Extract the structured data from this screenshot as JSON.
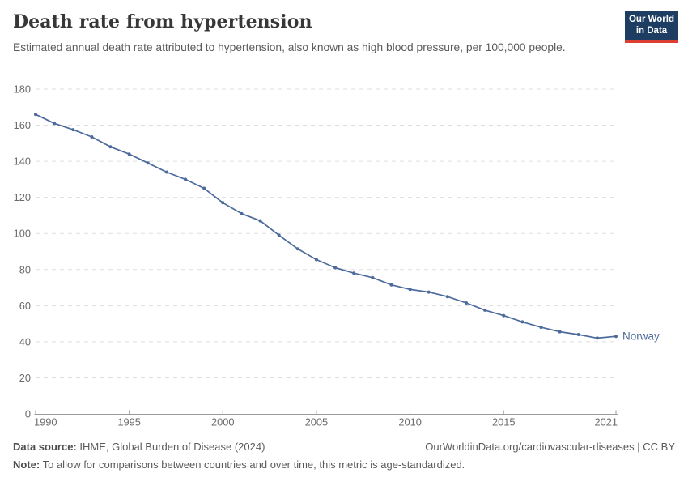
{
  "header": {
    "title": "Death rate from hypertension",
    "subtitle": "Estimated annual death rate attributed to hypertension, also known as high blood pressure, per 100,000 people.",
    "logo": {
      "line1": "Our World",
      "line2": "in Data",
      "bg_color": "#1d3d63",
      "accent_color": "#dc3e32"
    }
  },
  "chart_data": {
    "type": "line",
    "title": "Death rate from hypertension",
    "subtitle": "Estimated annual death rate attributed to hypertension, also known as high blood pressure, per 100,000 people.",
    "xlabel": "",
    "ylabel": "",
    "x": [
      1990,
      1991,
      1992,
      1993,
      1994,
      1995,
      1996,
      1997,
      1998,
      1999,
      2000,
      2001,
      2002,
      2003,
      2004,
      2005,
      2006,
      2007,
      2008,
      2009,
      2010,
      2011,
      2012,
      2013,
      2014,
      2015,
      2016,
      2017,
      2018,
      2019,
      2020,
      2021
    ],
    "series": [
      {
        "name": "Norway",
        "color": "#4c6a9c",
        "values": [
          166,
          161,
          157.5,
          153.5,
          148,
          144,
          139,
          134,
          130,
          125,
          117,
          111,
          107,
          99,
          91.5,
          85.5,
          81,
          78,
          75.5,
          71.5,
          69,
          67.5,
          65,
          61.5,
          57.5,
          54.5,
          51,
          48,
          45.5,
          44,
          42,
          43
        ]
      }
    ],
    "ylim": [
      0,
      180
    ],
    "ytick_interval": 20,
    "yticks": [
      0,
      20,
      40,
      60,
      80,
      100,
      120,
      140,
      160,
      180
    ],
    "xticks": [
      1990,
      1995,
      2000,
      2005,
      2010,
      2015,
      2021
    ],
    "grid": "horizontal-dashed",
    "legend_position": "end-of-line-label",
    "marker": "dot",
    "tick_color": "#6b6b6b",
    "grid_color": "#dddddd",
    "axis_color": "#9a9a9a"
  },
  "footer": {
    "source_label": "Data source:",
    "source_text": "IHME, Global Burden of Disease (2024)",
    "link": "OurWorldinData.org/cardiovascular-diseases | CC BY",
    "note_label": "Note:",
    "note_text": "To allow for comparisons between countries and over time, this metric is age-standardized."
  }
}
